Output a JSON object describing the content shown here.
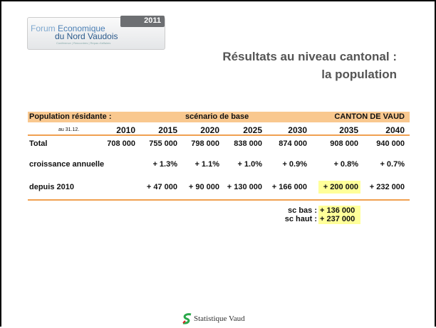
{
  "logo": {
    "word1": "Forum",
    "word2": "Economique",
    "word3": "du Nord Vaudois",
    "tagline": "Conférence | Rencontres | Repas d'affaires",
    "edition": "2011"
  },
  "title": {
    "line1": "Résultats au niveau cantonal :",
    "line2": "la population"
  },
  "table": {
    "header": [
      "Population résidante :",
      "scénario de base",
      "CANTON DE VAUD"
    ],
    "date_label": "au 31.12.",
    "years": [
      "2010",
      "2015",
      "2020",
      "2025",
      "2030",
      "2035",
      "2040"
    ],
    "rows": [
      {
        "label": "Total",
        "cells": [
          "708 000",
          "755 000",
          "798 000",
          "838 000",
          "874 000",
          "908 000",
          "940 000"
        ]
      },
      {
        "label": "croissance annuelle",
        "cells": [
          "+ 1.3%",
          "+ 1.1%",
          "+ 1.0%",
          "+ 0.9%",
          "+ 0.8%",
          "+ 0.7%"
        ]
      },
      {
        "label": "depuis 2010",
        "cells": [
          "+ 47 000",
          "+ 90 000",
          "+ 130 000",
          "+ 166 000",
          "+ 200 000",
          "+ 232 000"
        ]
      }
    ],
    "scenarios": [
      {
        "label": "sc bas :",
        "value": "+ 136 000"
      },
      {
        "label": "sc haut :",
        "value": "+ 237 000"
      }
    ]
  },
  "footer": "Statistique Vaud"
}
